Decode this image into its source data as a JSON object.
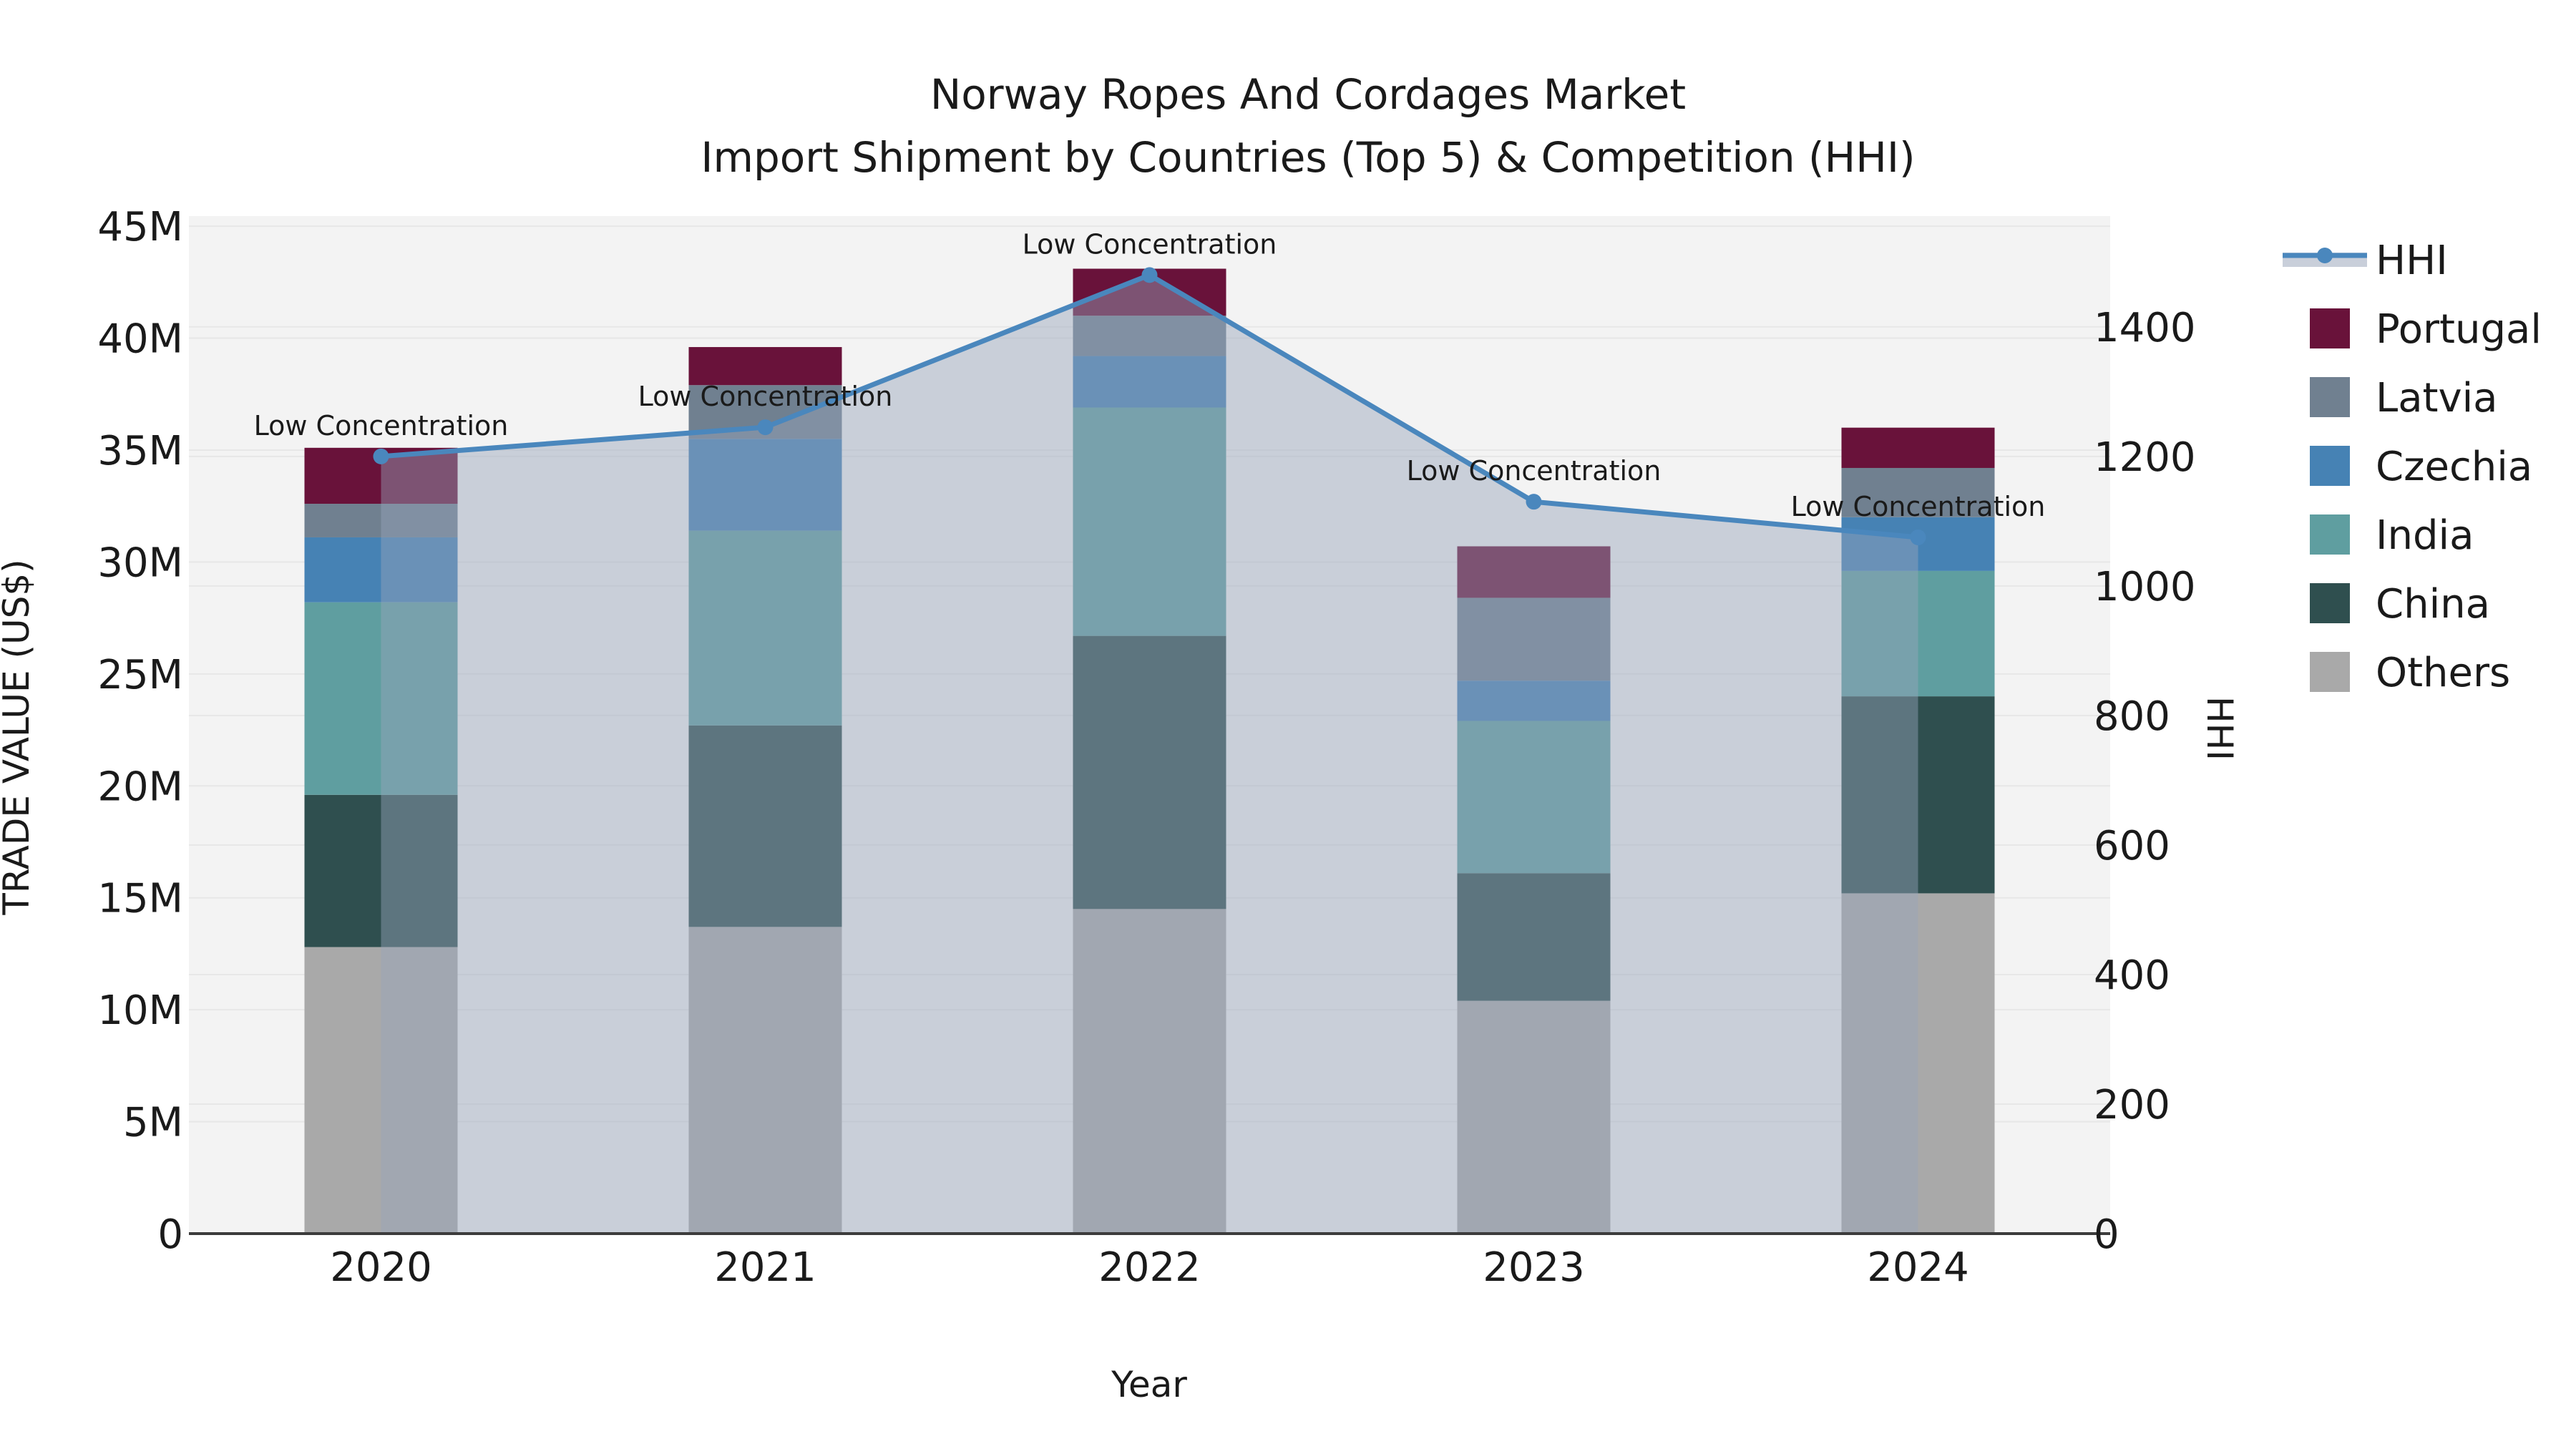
{
  "title": {
    "line1": "Norway Ropes And Cordages Market",
    "line2": "Import Shipment by Countries (Top 5) & Competition (HHI)"
  },
  "chart_data": {
    "type": "bar",
    "subtype": "stacked-bars-with-line-overlay",
    "categories": [
      "2020",
      "2021",
      "2022",
      "2023",
      "2024"
    ],
    "bar_value_unit": "million US$",
    "series": [
      {
        "name": "Others",
        "color": "#a9a9a9",
        "values": [
          12.8,
          13.7,
          14.5,
          10.4,
          15.2
        ]
      },
      {
        "name": "China",
        "color": "#2f4f4f",
        "values": [
          6.8,
          9.0,
          12.2,
          5.7,
          8.8
        ]
      },
      {
        "name": "India",
        "color": "#5f9ea0",
        "values": [
          8.6,
          8.7,
          10.2,
          6.8,
          5.6
        ]
      },
      {
        "name": "Czechia",
        "color": "#4682b4",
        "values": [
          2.9,
          4.1,
          2.3,
          1.8,
          2.4
        ]
      },
      {
        "name": "Latvia",
        "color": "#708090",
        "values": [
          1.5,
          2.4,
          1.8,
          3.7,
          2.2
        ]
      },
      {
        "name": "Portugal",
        "color": "#69123a",
        "values": [
          2.5,
          1.7,
          2.1,
          2.3,
          1.8
        ]
      }
    ],
    "stack_totals": [
      35.1,
      39.6,
      43.1,
      30.7,
      36.0
    ],
    "line_series": {
      "name": "HHI",
      "color": "#4a87bd",
      "area_fill_color": "rgba(150,164,186,0.45)",
      "values": [
        1200,
        1245,
        1480,
        1130,
        1075
      ]
    },
    "point_annotation": "Low Concentration",
    "xlabel": "Year",
    "ylabel_left": "TRADE VALUE (US$)",
    "ylabel_right": "HHI",
    "y_left_ticks": {
      "values": [
        0,
        5,
        10,
        15,
        20,
        25,
        30,
        35,
        40,
        45
      ],
      "labels": [
        "0",
        "5M",
        "10M",
        "15M",
        "20M",
        "25M",
        "30M",
        "35M",
        "40M",
        "45M"
      ]
    },
    "y_right_ticks": {
      "values": [
        0,
        200,
        400,
        600,
        800,
        1000,
        1200,
        1400
      ],
      "labels": [
        "0",
        "200",
        "400",
        "600",
        "800",
        "1000",
        "1200",
        "1400"
      ]
    },
    "ylim_left": [
      0,
      45.45
    ],
    "ylim_right": [
      0,
      1571
    ],
    "grid": true,
    "legend_position": "right-outside",
    "legend_order": [
      "HHI",
      "Portugal",
      "Latvia",
      "Czechia",
      "India",
      "China",
      "Others"
    ]
  },
  "colors": {
    "figure_bg": "#ffffff",
    "plot_bg": "#f3f3f3",
    "grid_line": "#e7e7e7",
    "axis_line": "#3c3c3c",
    "text": "#1a1a1a",
    "legend_hhi_band": "#c9cfda"
  }
}
